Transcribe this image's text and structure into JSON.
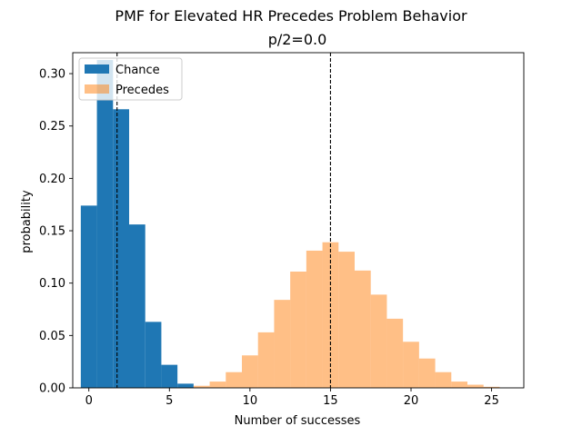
{
  "chart_data": {
    "type": "bar",
    "title": "PMF for Elevated HR Precedes Problem Behavior",
    "subtitle": "p/2=0.0",
    "xlabel": "Number of successes",
    "ylabel": "probability",
    "xlim": [
      -1,
      27
    ],
    "ylim": [
      0,
      0.32
    ],
    "x_ticks": [
      0,
      5,
      10,
      15,
      20,
      25
    ],
    "y_ticks": [
      0.0,
      0.05,
      0.1,
      0.15,
      0.2,
      0.25,
      0.3
    ],
    "x_tick_labels": [
      "0",
      "5",
      "10",
      "15",
      "20",
      "25"
    ],
    "y_tick_labels": [
      "0.00",
      "0.05",
      "0.10",
      "0.15",
      "0.20",
      "0.25",
      "0.30"
    ],
    "bar_width": 1,
    "legend_position": "upper-left",
    "series": [
      {
        "name": "Chance",
        "color": "#1f77b4",
        "alpha": 1.0,
        "x": [
          0,
          1,
          2,
          3,
          4,
          5,
          6
        ],
        "values": [
          0.174,
          0.313,
          0.266,
          0.156,
          0.063,
          0.022,
          0.004
        ]
      },
      {
        "name": "Precedes",
        "color": "#ff7f0e",
        "alpha": 0.5,
        "x": [
          7,
          8,
          9,
          10,
          11,
          12,
          13,
          14,
          15,
          16,
          17,
          18,
          19,
          20,
          21,
          22,
          23,
          24,
          25
        ],
        "values": [
          0.002,
          0.006,
          0.015,
          0.031,
          0.053,
          0.084,
          0.111,
          0.131,
          0.139,
          0.13,
          0.112,
          0.089,
          0.066,
          0.044,
          0.028,
          0.015,
          0.006,
          0.003,
          0.001
        ]
      }
    ],
    "vlines": [
      {
        "x": 1.75,
        "style": "dashed",
        "color": "#000000"
      },
      {
        "x": 15.0,
        "style": "dashed",
        "color": "#000000"
      }
    ]
  }
}
